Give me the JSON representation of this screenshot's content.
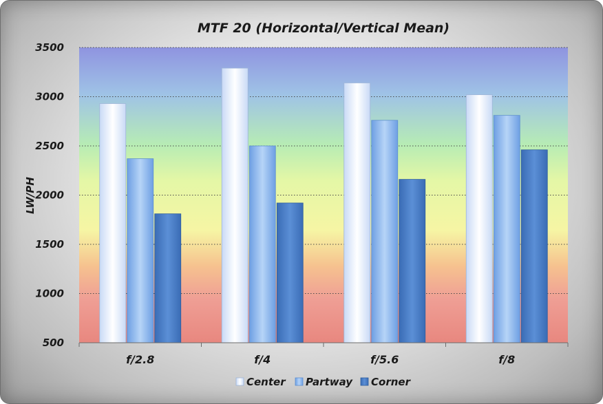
{
  "chart_data": {
    "type": "bar",
    "title": "MTF 20 (Horizontal/Vertical Mean)",
    "xlabel": "",
    "ylabel": "LW/PH",
    "categories": [
      "f/2.8",
      "f/4",
      "f/5.6",
      "f/8"
    ],
    "series": [
      {
        "name": "Center",
        "values": [
          2930,
          3290,
          3140,
          3020
        ],
        "color": "#e4eefc"
      },
      {
        "name": "Partway",
        "values": [
          2370,
          2500,
          2760,
          2810
        ],
        "color": "#94bcef"
      },
      {
        "name": "Corner",
        "values": [
          1810,
          1920,
          2160,
          2460
        ],
        "color": "#4a7fc8"
      }
    ],
    "ylim": [
      500,
      3500
    ],
    "yticks": [
      500,
      1000,
      1500,
      2000,
      2500,
      3000,
      3500
    ],
    "grid": true,
    "legend_position": "bottom",
    "plot_background": "gradient red-yellow-green-blue"
  }
}
